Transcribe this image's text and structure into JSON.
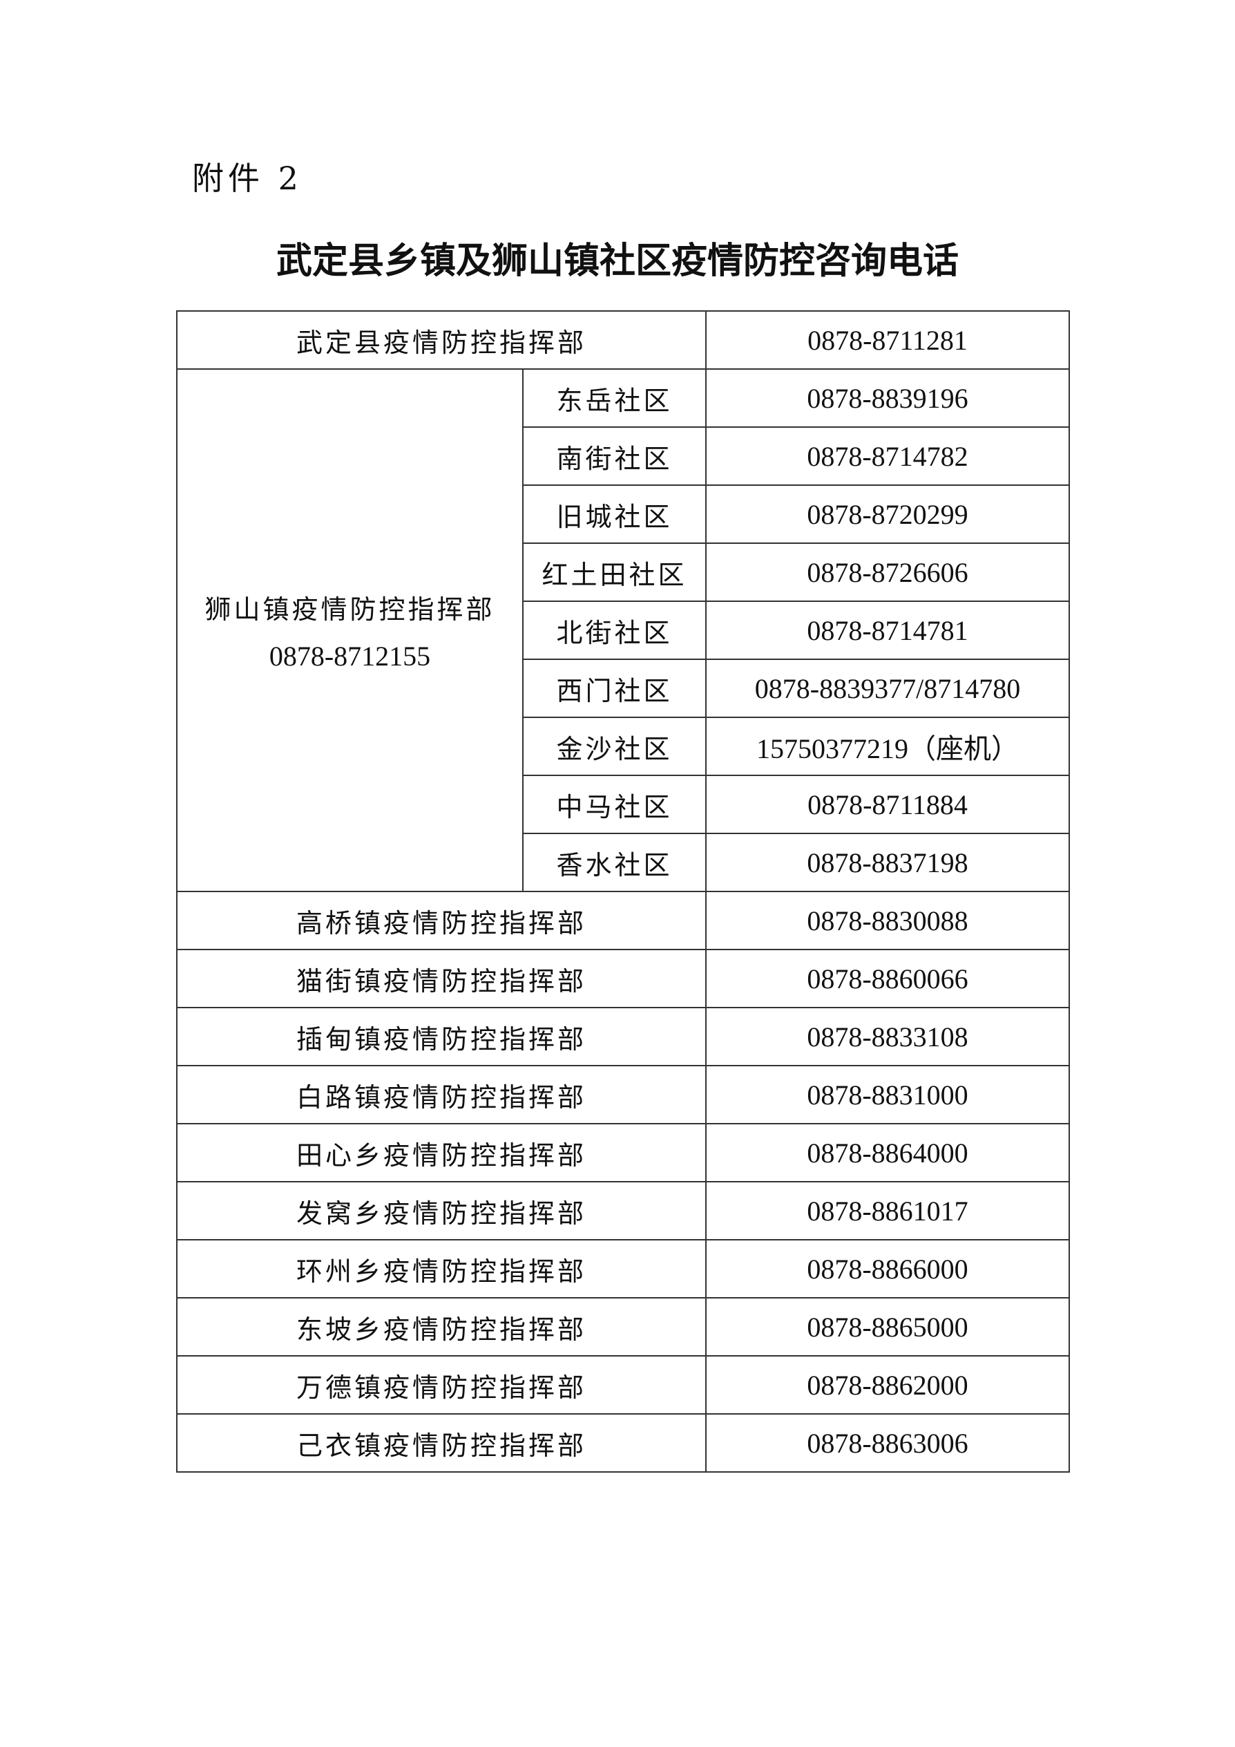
{
  "attachment_label": "附件 2",
  "title": "武定县乡镇及狮山镇社区疫情防控咨询电话",
  "table": {
    "county_row": {
      "name": "武定县疫情防控指挥部",
      "phone": "0878-8711281"
    },
    "shishan": {
      "name": "狮山镇疫情防控指挥部",
      "phone": "0878-8712155",
      "communities": [
        {
          "name": "东岳社区",
          "phone": "0878-8839196"
        },
        {
          "name": "南街社区",
          "phone": "0878-8714782"
        },
        {
          "name": "旧城社区",
          "phone": "0878-8720299"
        },
        {
          "name": "红土田社区",
          "phone": "0878-8726606"
        },
        {
          "name": "北街社区",
          "phone": "0878-8714781"
        },
        {
          "name": "西门社区",
          "phone": "0878-8839377/8714780"
        },
        {
          "name": "金沙社区",
          "phone": "15750377219（座机）"
        },
        {
          "name": "中马社区",
          "phone": "0878-8711884"
        },
        {
          "name": "香水社区",
          "phone": "0878-8837198"
        }
      ]
    },
    "towns": [
      {
        "name": "高桥镇疫情防控指挥部",
        "phone": "0878-8830088"
      },
      {
        "name": "猫街镇疫情防控指挥部",
        "phone": "0878-8860066"
      },
      {
        "name": "插甸镇疫情防控指挥部",
        "phone": "0878-8833108"
      },
      {
        "name": "白路镇疫情防控指挥部",
        "phone": "0878-8831000"
      },
      {
        "name": "田心乡疫情防控指挥部",
        "phone": "0878-8864000"
      },
      {
        "name": "发窝乡疫情防控指挥部",
        "phone": "0878-8861017"
      },
      {
        "name": "环州乡疫情防控指挥部",
        "phone": "0878-8866000"
      },
      {
        "name": "东坡乡疫情防控指挥部",
        "phone": "0878-8865000"
      },
      {
        "name": "万德镇疫情防控指挥部",
        "phone": "0878-8862000"
      },
      {
        "name": "己衣镇疫情防控指挥部",
        "phone": "0878-8863006"
      }
    ]
  }
}
